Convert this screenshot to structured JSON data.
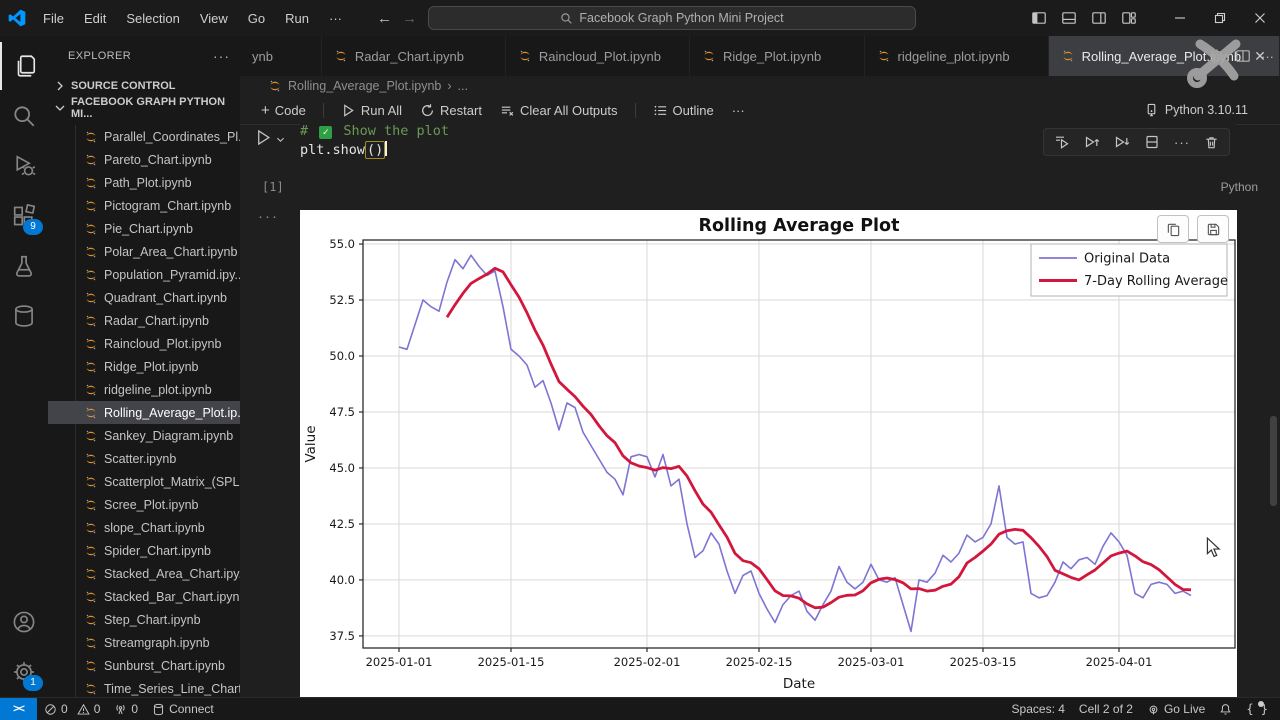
{
  "titlebar": {
    "menus": [
      "File",
      "Edit",
      "Selection",
      "View",
      "Go",
      "Run",
      "···"
    ],
    "search_text": "Facebook Graph Python Mini Project"
  },
  "activity_bar": {
    "top": [
      {
        "name": "explorer",
        "icon": "files",
        "active": true
      },
      {
        "name": "search",
        "icon": "search"
      },
      {
        "name": "run-and-debug",
        "icon": "debug"
      },
      {
        "name": "extensions",
        "icon": "extensions",
        "badge": "9"
      },
      {
        "name": "testing",
        "icon": "beaker"
      },
      {
        "name": "database",
        "icon": "database"
      }
    ],
    "bottom": [
      {
        "name": "accounts",
        "icon": "account"
      },
      {
        "name": "settings",
        "icon": "gear",
        "badge": "1"
      }
    ]
  },
  "sidebar": {
    "title": "EXPLORER",
    "more": "···",
    "section_collapsed": "SOURCE CONTROL",
    "section_expanded": "FACEBOOK GRAPH PYTHON MI...",
    "selected_index": 12,
    "files": [
      "Parallel_Coordinates_Pl...",
      "Pareto_Chart.ipynb",
      "Path_Plot.ipynb",
      "Pictogram_Chart.ipynb",
      "Pie_Chart.ipynb",
      "Polar_Area_Chart.ipynb",
      "Population_Pyramid.ipy...",
      "Quadrant_Chart.ipynb",
      "Radar_Chart.ipynb",
      "Raincloud_Plot.ipynb",
      "Ridge_Plot.ipynb",
      "ridgeline_plot.ipynb",
      "Rolling_Average_Plot.ip...",
      "Sankey_Diagram.ipynb",
      "Scatter.ipynb",
      "Scatterplot_Matrix_(SPL...",
      "Scree_Plot.ipynb",
      "slope_Chart.ipynb",
      "Spider_Chart.ipynb",
      "Stacked_Area_Chart.ipy...",
      "Stacked_Bar_Chart.ipynb",
      "Step_Chart.ipynb",
      "Streamgraph.ipynb",
      "Sunburst_Chart.ipynb",
      "Time_Series_Line_Chart...."
    ]
  },
  "tabs": [
    {
      "label": "ynb",
      "partial": true
    },
    {
      "label": "Radar_Chart.ipynb"
    },
    {
      "label": "Raincloud_Plot.ipynb"
    },
    {
      "label": "Ridge_Plot.ipynb"
    },
    {
      "label": "ridgeline_plot.ipynb"
    },
    {
      "label": "Rolling_Average_Plot.ipynb",
      "active": true
    }
  ],
  "breadcrumb": {
    "file": "Rolling_Average_Plot.ipynb",
    "more": "..."
  },
  "notebook_toolbar": {
    "code": "Code",
    "run_all": "Run All",
    "restart": "Restart",
    "clear": "Clear All Outputs",
    "outline": "Outline",
    "kernel": "Python 3.10.11"
  },
  "cell": {
    "execution_count": "[1]",
    "comment_prefix": "# ",
    "comment_check": "✓",
    "comment_text": " Show the plot",
    "code_text": "plt.show",
    "code_brackets": "()",
    "language": "Python"
  },
  "status_bar": {
    "remote": "><",
    "errors": "0",
    "warnings": "0",
    "ports": "0",
    "connect": "Connect",
    "spaces": "Spaces: 4",
    "cell_indicator": "Cell 2 of 2",
    "go_live": "Go Live"
  },
  "chart_data": {
    "type": "line",
    "title": "Rolling Average Plot",
    "xlabel": "Date",
    "ylabel": "Value",
    "grid": true,
    "legend_position": "upper right",
    "series_start_date": "2025-01-01",
    "x_ticks": [
      "2025-01-01",
      "2025-01-15",
      "2025-02-01",
      "2025-02-15",
      "2025-03-01",
      "2025-03-15",
      "2025-04-01"
    ],
    "y_ticks": [
      37.5,
      40.0,
      42.5,
      45.0,
      47.5,
      50.0,
      52.5,
      55.0
    ],
    "ylim": [
      36.96,
      55.18
    ],
    "xlim_days": [
      -4.5,
      104.5
    ],
    "rolling_window": 7,
    "series": [
      {
        "name": "Original Data",
        "color": "#7d74d4",
        "line_width": 1.6,
        "values": [
          50.4,
          50.3,
          51.4,
          52.5,
          52.2,
          52.0,
          53.3,
          54.3,
          53.9,
          54.5,
          54.0,
          53.6,
          53.8,
          52.2,
          50.3,
          50.0,
          49.6,
          48.6,
          48.9,
          47.9,
          46.7,
          47.9,
          47.7,
          46.6,
          46.0,
          45.4,
          44.8,
          44.5,
          43.8,
          45.5,
          45.6,
          45.5,
          44.6,
          45.6,
          44.2,
          44.5,
          42.5,
          41.0,
          41.3,
          42.1,
          41.6,
          40.4,
          39.4,
          40.2,
          40.4,
          39.4,
          38.7,
          38.1,
          38.9,
          39.3,
          39.5,
          38.6,
          38.2,
          38.9,
          39.5,
          40.6,
          39.9,
          39.6,
          39.9,
          40.7,
          40.0,
          39.9,
          40.1,
          38.9,
          37.7,
          40.0,
          39.9,
          40.3,
          41.1,
          40.8,
          41.2,
          42.0,
          41.7,
          41.9,
          42.5,
          44.2,
          41.9,
          41.6,
          41.7,
          39.4,
          39.2,
          39.3,
          39.9,
          40.8,
          40.5,
          40.9,
          41.0,
          40.7,
          41.5,
          42.1,
          41.7,
          41.1,
          39.4,
          39.2,
          39.8,
          39.9,
          39.8,
          39.4,
          39.5,
          39.3
        ]
      },
      {
        "name": "7-Day Rolling Average",
        "color": "#d2163c",
        "line_width": 2.8,
        "derived_from": "rolling mean (window 7) of Original Data"
      }
    ]
  }
}
